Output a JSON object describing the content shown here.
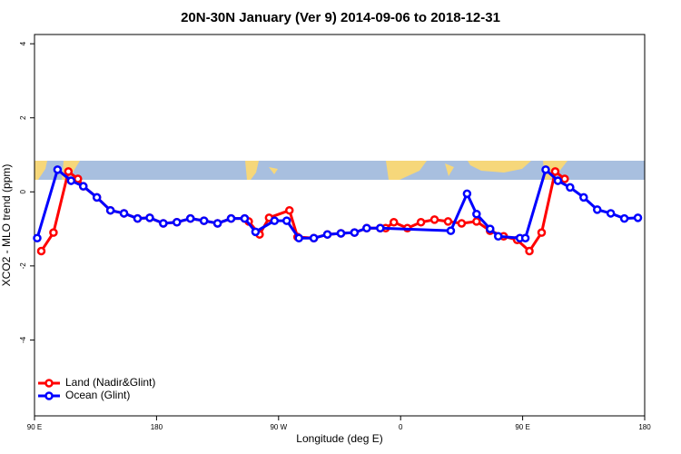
{
  "chart_data": {
    "type": "line",
    "title": "20N-30N January (Ver 9)   2014-09-06 to 2018-12-31",
    "x_label": "Longitude (deg E)",
    "y_label": "XCO2 - MLO trend (ppm)",
    "xlim": [
      90,
      540
    ],
    "ylim": [
      -6.05,
      4.25
    ],
    "xticks": [
      {
        "value": 90,
        "label": "90 E"
      },
      180,
      {
        "value": 270,
        "label": "90 W"
      },
      {
        "value": 360,
        "label": "0"
      },
      {
        "value": 450,
        "label": "90 E"
      },
      {
        "value": 540,
        "label": "180"
      }
    ],
    "yticks": [
      4,
      2,
      0,
      -2,
      -4
    ],
    "legend": "bottom-left",
    "series": [
      {
        "name": "Land (Nadir&Glint)",
        "color": "#ff0000",
        "x": [
          95,
          104,
          115,
          122,
          126,
          136,
          146,
          156,
          166,
          175,
          185,
          195,
          205,
          215,
          225,
          235,
          245,
          248,
          256,
          263,
          278,
          284,
          296,
          306,
          316,
          326,
          335,
          345,
          349,
          355,
          365,
          375,
          385,
          395,
          405,
          416,
          426,
          436,
          446,
          455,
          464,
          474,
          481
        ],
        "values": [
          -1.6,
          -1.1,
          0.55,
          0.35,
          0.15,
          -0.15,
          -0.5,
          -0.58,
          -0.72,
          -0.7,
          -0.85,
          -0.82,
          -0.72,
          -0.78,
          -0.85,
          -0.72,
          -0.72,
          -0.8,
          -1.15,
          -0.7,
          -0.5,
          -1.22,
          -1.25,
          -1.15,
          -1.12,
          -1.1,
          -0.98,
          -0.98,
          -0.98,
          -0.82,
          -0.98,
          -0.82,
          -0.75,
          -0.8,
          -0.85,
          -0.8,
          -1.05,
          -1.2,
          -1.3,
          -1.6,
          -1.1,
          0.55,
          0.35
        ]
      },
      {
        "name": "Ocean (Glint)",
        "color": "#0000ff",
        "x": [
          92,
          107,
          117,
          126,
          136,
          146,
          156,
          166,
          175,
          185,
          195,
          205,
          215,
          225,
          235,
          245,
          253,
          267,
          276,
          285,
          296,
          306,
          316,
          326,
          335,
          345,
          397,
          409,
          416,
          426,
          432,
          448,
          452,
          467,
          476,
          485,
          495,
          505,
          515,
          525,
          535
        ],
        "values": [
          -1.25,
          0.6,
          0.3,
          0.15,
          -0.15,
          -0.5,
          -0.58,
          -0.72,
          -0.7,
          -0.85,
          -0.82,
          -0.72,
          -0.78,
          -0.85,
          -0.72,
          -0.72,
          -1.08,
          -0.78,
          -0.78,
          -1.25,
          -1.25,
          -1.15,
          -1.12,
          -1.1,
          -0.98,
          -0.98,
          -1.05,
          -0.05,
          -0.6,
          -1.0,
          -1.2,
          -1.25,
          -1.25,
          0.6,
          0.3,
          0.12,
          -0.15,
          -0.48,
          -0.58,
          -0.72,
          -0.7
        ]
      }
    ]
  }
}
